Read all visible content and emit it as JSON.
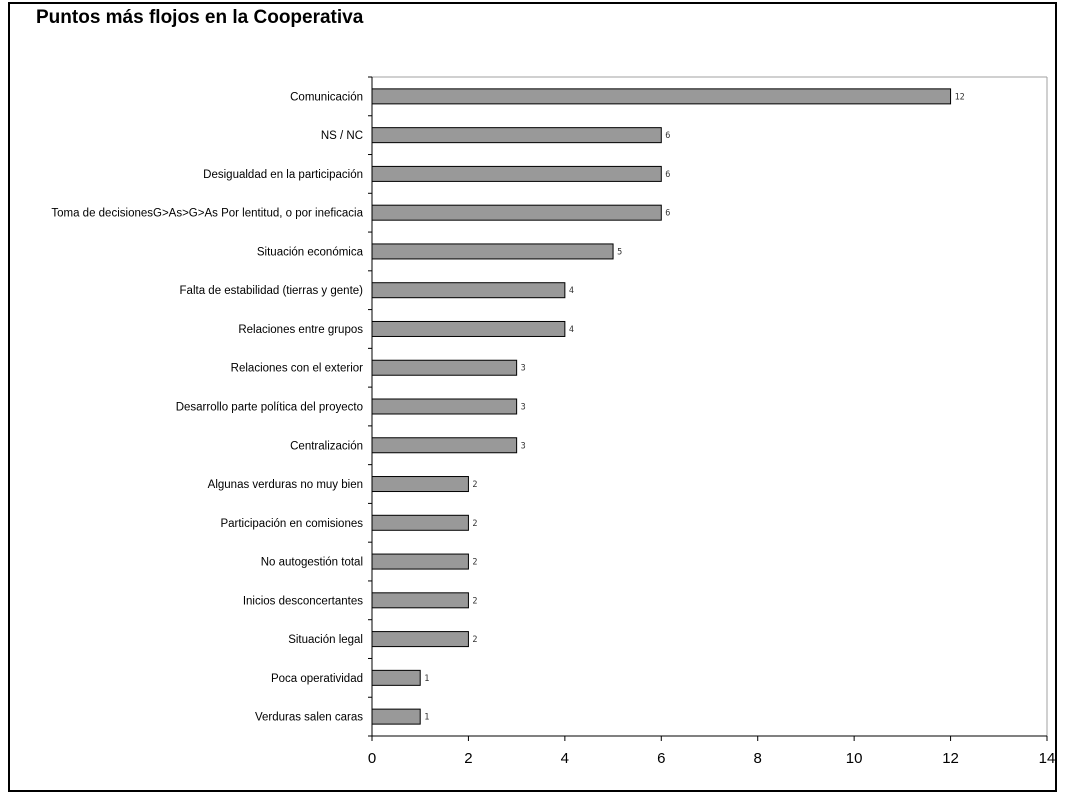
{
  "chart_data": {
    "type": "bar",
    "orientation": "horizontal",
    "title": "Puntos más flojos en la Cooperativa",
    "categories": [
      "Comunicación",
      "NS / NC",
      "Desigualdad en la participación",
      "Toma de decisionesG>As>G>As Por lentitud, o por ineficacia",
      "Situación económica",
      "Falta de estabilidad (tierras y gente)",
      "Relaciones entre grupos",
      "Relaciones con el exterior",
      "Desarrollo parte política del proyecto",
      "Centralización",
      "Algunas verduras no muy bien",
      "Participación en comisiones",
      "No autogestión total",
      "Inicios desconcertantes",
      "Situación legal",
      "Poca operatividad",
      "Verduras salen caras"
    ],
    "values": [
      12,
      6,
      6,
      6,
      5,
      4,
      4,
      3,
      3,
      3,
      2,
      2,
      2,
      2,
      2,
      1,
      1
    ],
    "value_labels": [
      "12",
      "6",
      "6",
      "6",
      "5",
      "4",
      "4",
      "3",
      "3",
      "3",
      "2",
      "2",
      "2",
      "2",
      "2",
      "1",
      "1"
    ],
    "xlim": [
      0,
      14
    ],
    "xticks": [
      "0",
      "2",
      "4",
      "6",
      "8",
      "10",
      "12",
      "14"
    ],
    "grid": false,
    "legend": "none",
    "colors": {
      "bar_fill": "#999999",
      "bar_stroke": "#000000",
      "axis": "#000000",
      "plot_border": "#a0a0a0"
    }
  }
}
